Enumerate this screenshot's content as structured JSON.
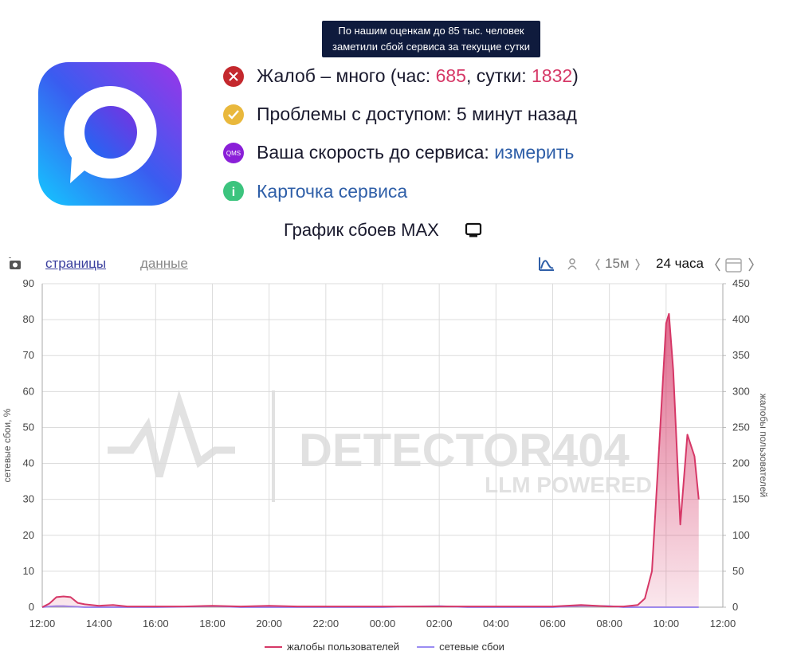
{
  "tooltip": {
    "lines": [
      "По нашим оценкам до 85 тыс. человек",
      "заметили сбой сервиса за текущие сутки"
    ]
  },
  "status": {
    "complaints": {
      "prefix": "Жалоб – много (час: ",
      "hour": 685,
      "middle": ", сутки: ",
      "day": 1832,
      "suffix": ")"
    },
    "access": "Проблемы с доступом: 5 минут назад",
    "speed": {
      "icon": "QMS",
      "text": "Ваша скорость до сервиса: ",
      "link": "измерить"
    },
    "card_link": "Карточка сервиса"
  },
  "chart_title": "График сбоев MAX",
  "toolbar": {
    "tabs": [
      "страницы",
      "данные"
    ],
    "interval": "15м",
    "range": "24 часа"
  },
  "chart_data": {
    "type": "area",
    "watermark": {
      "line1": "DETECTOR404",
      "line2": "LLM POWERED"
    },
    "x": [
      0,
      0.25,
      0.5,
      0.75,
      1,
      1.25,
      1.5,
      2,
      2.5,
      3,
      4,
      5,
      6,
      7,
      8,
      9,
      10,
      11,
      12,
      13,
      14,
      15,
      16,
      17,
      18,
      19,
      20,
      20.5,
      21,
      21.25,
      21.5,
      21.75,
      22,
      22.1,
      22.25,
      22.5,
      22.75,
      23,
      23.15
    ],
    "series": [
      {
        "name": "жалобы пользователей",
        "color": "#d63867",
        "axis": "y2",
        "values": [
          0,
          5,
          14,
          15,
          14,
          6,
          4,
          2,
          3,
          1,
          1,
          1,
          2,
          1,
          2,
          1,
          1,
          1,
          1,
          1,
          1,
          1,
          1,
          1,
          1,
          3,
          1,
          1,
          3,
          12,
          50,
          220,
          395,
          408,
          330,
          115,
          240,
          210,
          150
        ]
      },
      {
        "name": "сетевые сбои",
        "color": "#9a8cf2",
        "values": [
          0,
          0.2,
          0.3,
          0.3,
          0.2,
          0.1,
          0,
          0,
          0,
          0,
          0,
          0.1,
          0.3,
          0,
          0,
          0,
          0,
          0,
          0,
          0.2,
          0.3,
          0,
          0,
          0,
          0,
          0.4,
          0.3,
          0,
          0,
          0,
          0,
          0,
          0,
          0,
          0,
          0,
          0,
          0,
          0
        ]
      }
    ],
    "xlim": [
      0,
      24
    ],
    "xticks": [
      {
        "value": 0,
        "label": "12:00"
      },
      {
        "value": 2,
        "label": "14:00"
      },
      {
        "value": 4,
        "label": "16:00"
      },
      {
        "value": 6,
        "label": "18:00"
      },
      {
        "value": 8,
        "label": "20:00"
      },
      {
        "value": 10,
        "label": "22:00"
      },
      {
        "value": 12,
        "label": "00:00"
      },
      {
        "value": 14,
        "label": "02:00"
      },
      {
        "value": 16,
        "label": "04:00"
      },
      {
        "value": 18,
        "label": "06:00"
      },
      {
        "value": 20,
        "label": "08:00"
      },
      {
        "value": 22,
        "label": "10:00"
      },
      {
        "value": 24,
        "label": "12:00"
      }
    ],
    "ylim": [
      0,
      90
    ],
    "yticks": [
      0,
      10,
      20,
      30,
      40,
      50,
      60,
      70,
      80,
      90
    ],
    "y2lim": [
      0,
      450
    ],
    "y2ticks": [
      0,
      50,
      100,
      150,
      200,
      250,
      300,
      350,
      400,
      450
    ],
    "y_label": "сетевые сбои, %",
    "y2_label": "жалобы пользователей",
    "grid": true,
    "legend": "bottom"
  }
}
